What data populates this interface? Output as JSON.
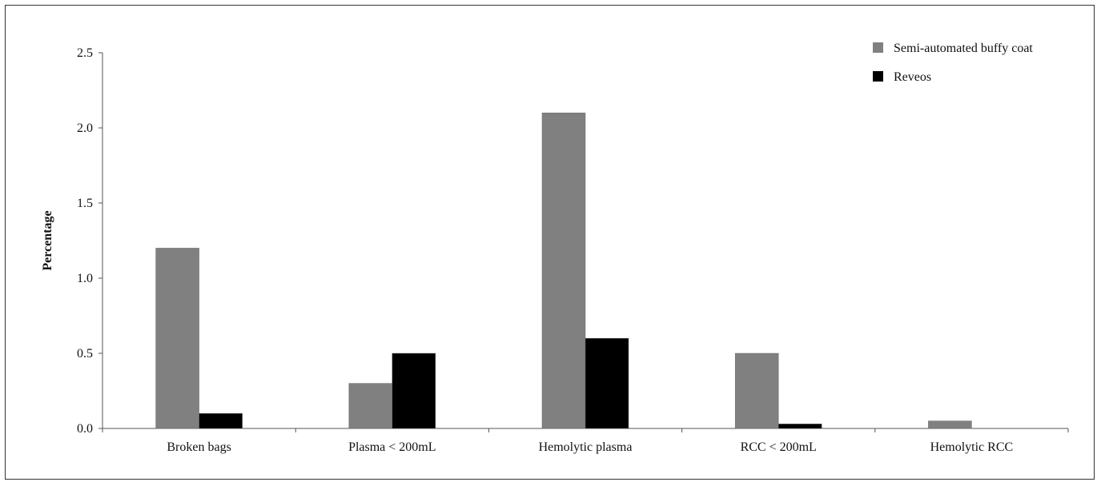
{
  "chart_data": {
    "type": "bar",
    "title": "",
    "xlabel": "",
    "ylabel": "Percentage",
    "ylim": [
      0,
      2.5
    ],
    "yticks": [
      "0.0",
      "0.5",
      "1.0",
      "1.5",
      "2.0",
      "2.5"
    ],
    "categories": [
      "Broken bags",
      "Plasma < 200mL",
      "Hemolytic plasma",
      "RCC < 200mL",
      "Hemolytic RCC"
    ],
    "series": [
      {
        "name": "Semi-automated buffy coat",
        "color": "#808080",
        "values": [
          1.2,
          0.3,
          2.1,
          0.5,
          0.05
        ]
      },
      {
        "name": "Reveos",
        "color": "#000000",
        "values": [
          0.1,
          0.5,
          0.6,
          0.03,
          0.0
        ]
      }
    ],
    "grid": false,
    "legend_position": "top-right"
  }
}
